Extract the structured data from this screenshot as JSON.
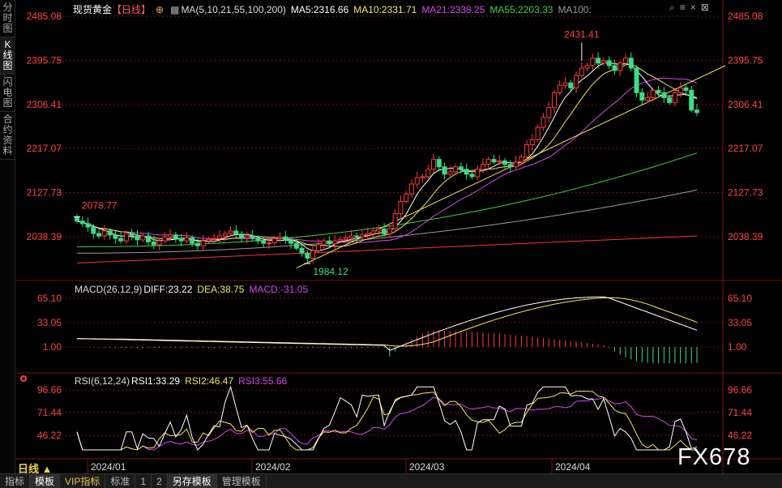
{
  "left_tabs": [
    {
      "label": "分时图",
      "active": false
    },
    {
      "label": "K线图",
      "active": true
    },
    {
      "label": "闪电图",
      "active": false
    },
    {
      "label": "合约资料",
      "active": false
    }
  ],
  "header": {
    "title": "现货黄金",
    "period_tag": "【日线】",
    "ma_params": "MA(5,10,21,55,100,200)",
    "ma5": "MA5:2316.66",
    "ma10": "MA10:2331.71",
    "ma21": "MA21:2338.25",
    "ma55": "MA55:2203.33",
    "ma100": "MA100:"
  },
  "macd_legend": {
    "params": "MACD(26,12,9)",
    "diff": "DIFF:23.22",
    "dea": "DEA:38.75",
    "macd": "MACD:-31.05"
  },
  "rsi_legend": {
    "params": "RSI(6,12,24)",
    "rsi1": "RSI1:33.29",
    "rsi2": "RSI2:46.47",
    "rsi3": "RSI3:55.66"
  },
  "price_axis": [
    "2485.08",
    "2395.75",
    "2306.41",
    "2217.07",
    "2127.73",
    "2038.39"
  ],
  "macd_axis": [
    "65.10",
    "33.05",
    "1.00"
  ],
  "rsi_axis": [
    "96.66",
    "71.44",
    "46.22"
  ],
  "annotations": {
    "high": "2431.41",
    "low": "1984.12",
    "mark": "2078.77"
  },
  "date_labels": [
    "2024/01",
    "2024/02",
    "2024/03",
    "2024/04"
  ],
  "period_label": "日线 ▲",
  "watermark": "FX678",
  "bottom_tabs": [
    {
      "label": "指标",
      "active": false,
      "vip": false
    },
    {
      "label": "模板",
      "active": true,
      "vip": false
    },
    {
      "label": "VIP指标",
      "active": false,
      "vip": true
    },
    {
      "label": "标准",
      "active": false,
      "vip": false
    },
    {
      "label": "1",
      "active": false,
      "vip": false
    },
    {
      "label": "2",
      "active": false,
      "vip": false
    },
    {
      "label": "另存模板",
      "active": true,
      "vip": false
    },
    {
      "label": "管理模板",
      "active": false,
      "vip": false
    }
  ],
  "colors": {
    "up": "#ff3b3b",
    "down": "#3ddc84",
    "grid": "#7a1010",
    "axis_text": "#ff4444",
    "ma5": "#ffffff",
    "ma10": "#f2e85c",
    "ma21": "#d946ef",
    "ma55": "#3ecf3e",
    "ma100": "#9a9a9a",
    "ma200": "#ff3030",
    "trend": "#f2e85c"
  },
  "chart_data": {
    "type": "candlestick",
    "instrument": "现货黄金",
    "x_axis_labels": [
      "2024/01",
      "2024/02",
      "2024/03",
      "2024/04"
    ],
    "price_ticks": [
      2485.08,
      2395.75,
      2306.41,
      2217.07,
      2127.73,
      2038.39
    ],
    "annotated_high": 2431.41,
    "annotated_low": 1984.12,
    "annotated_point": 2078.77,
    "close_path": [
      2070,
      2065,
      2058,
      2045,
      2040,
      2050,
      2042,
      2035,
      2030,
      2045,
      2040,
      2032,
      2040,
      2028,
      2022,
      2030,
      2038,
      2042,
      2035,
      2030,
      2036,
      2025,
      2020,
      2030,
      2033,
      2035,
      2040,
      2045,
      2050,
      2044,
      2036,
      2040,
      2035,
      2030,
      2025,
      2026,
      2035,
      2038,
      2032,
      2025,
      2015,
      2005,
      1995,
      2010,
      2022,
      2030,
      2024,
      2030,
      2033,
      2036,
      2040,
      2038,
      2042,
      2045,
      2050,
      2054,
      2044,
      2055,
      2085,
      2110,
      2125,
      2145,
      2158,
      2160,
      2175,
      2195,
      2180,
      2165,
      2170,
      2180,
      2175,
      2165,
      2160,
      2175,
      2185,
      2195,
      2190,
      2192,
      2185,
      2180,
      2190,
      2200,
      2225,
      2235,
      2260,
      2280,
      2300,
      2330,
      2345,
      2350,
      2340,
      2365,
      2380,
      2385,
      2400,
      2390,
      2395,
      2385,
      2375,
      2390,
      2400,
      2380,
      2330,
      2315,
      2320,
      2335,
      2330,
      2320,
      2310,
      2330,
      2340,
      2335,
      2295,
      2290
    ],
    "ma_lines": {
      "ma100_end": 2132,
      "ma200_end": 2040
    },
    "macd": {
      "diff": 23.22,
      "dea": 38.75,
      "macd": -31.05,
      "ticks": [
        65.1,
        33.05,
        1.0
      ]
    },
    "rsi": {
      "rsi1": 33.29,
      "rsi2": 46.47,
      "rsi3": 55.66,
      "ticks": [
        96.66,
        71.44,
        46.22
      ]
    }
  }
}
